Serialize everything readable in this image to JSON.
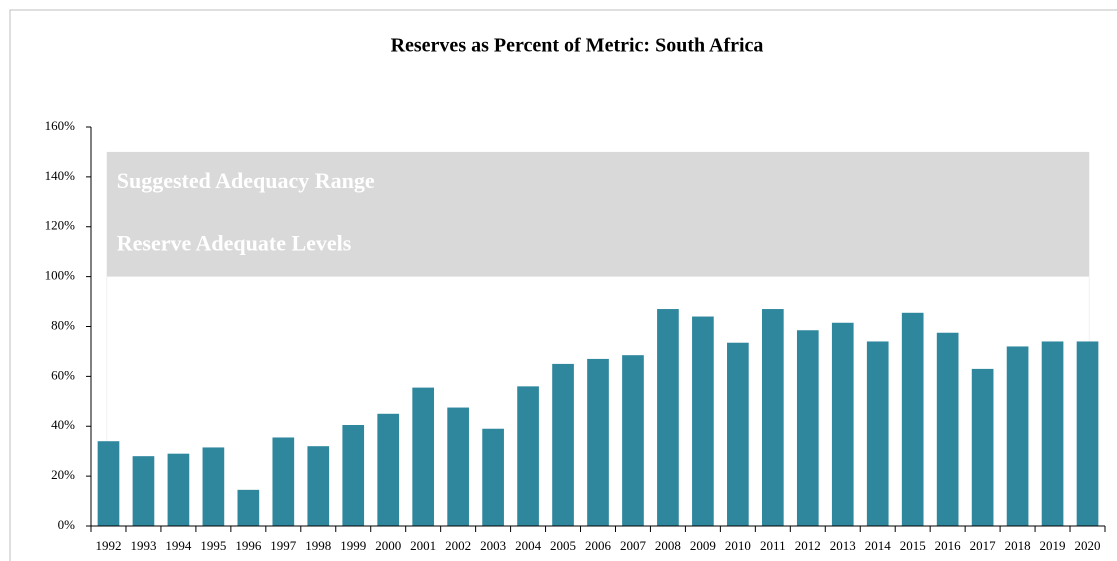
{
  "chart_data": {
    "type": "bar",
    "title": "Reserves as Percent of Metric: South Africa",
    "categories": [
      "1992",
      "1993",
      "1994",
      "1995",
      "1996",
      "1997",
      "1998",
      "1999",
      "2000",
      "2001",
      "2002",
      "2003",
      "2004",
      "2005",
      "2006",
      "2007",
      "2008",
      "2009",
      "2010",
      "2011",
      "2012",
      "2013",
      "2014",
      "2015",
      "2016",
      "2017",
      "2018",
      "2019",
      "2020"
    ],
    "values": [
      34,
      28,
      29,
      31.5,
      14.5,
      35.5,
      32,
      40.5,
      45,
      55.5,
      47.5,
      39,
      56,
      65,
      67,
      68.5,
      87,
      84,
      73.5,
      87,
      78.5,
      81.5,
      74,
      85.5,
      77.5,
      63,
      72,
      74,
      74
    ],
    "color": "#2f879e",
    "ylim": [
      0,
      160
    ],
    "yticks": [
      {
        "value": 0,
        "label": "0%"
      },
      {
        "value": 20,
        "label": "20%"
      },
      {
        "value": 40,
        "label": "40%"
      },
      {
        "value": 60,
        "label": "60%"
      },
      {
        "value": 80,
        "label": "80%"
      },
      {
        "value": 100,
        "label": "100%"
      },
      {
        "value": 120,
        "label": "120%"
      },
      {
        "value": 140,
        "label": "140%"
      },
      {
        "value": 160,
        "label": "160%"
      }
    ],
    "range_band": {
      "from": 100,
      "to": 150,
      "color": "#d9d9d9",
      "labels": [
        "Suggested Adequacy Range",
        "Reserve Adequate Levels"
      ]
    }
  }
}
